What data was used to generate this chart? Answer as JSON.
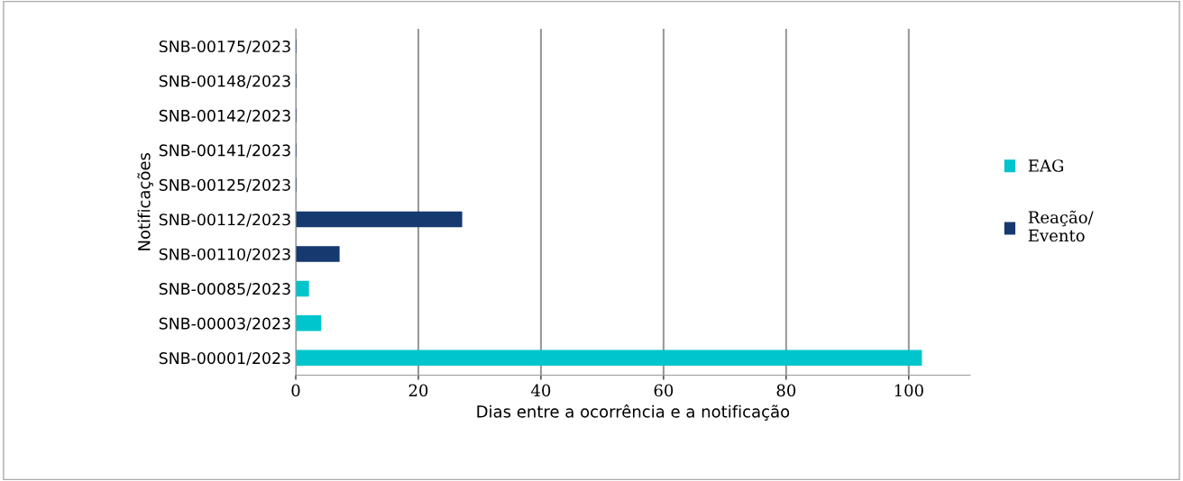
{
  "chart_data": {
    "type": "bar",
    "orientation": "horizontal",
    "xlabel": "Dias entre a ocorrência e a notificação",
    "ylabel": "Notificações",
    "categories": [
      "SNB-00175/2023",
      "SNB-00148/2023",
      "SNB-00142/2023",
      "SNB-00141/2023",
      "SNB-00125/2023",
      "SNB-00112/2023",
      "SNB-00110/2023",
      "SNB-00085/2023",
      "SNB-00003/2023",
      "SNB-00001/2023"
    ],
    "series": [
      {
        "name": "EAG",
        "color": "#00c5cc",
        "values": [
          null,
          null,
          null,
          null,
          null,
          null,
          null,
          2,
          4,
          102
        ]
      },
      {
        "name": "Reação/\nEvento",
        "color": "#163a70",
        "values": [
          0,
          0,
          0,
          0,
          0,
          27,
          7,
          null,
          null,
          null
        ]
      }
    ],
    "xlim": [
      0,
      110
    ],
    "xticks": [
      0,
      20,
      40,
      60,
      80,
      100
    ],
    "grid": "x",
    "legend": "right"
  }
}
